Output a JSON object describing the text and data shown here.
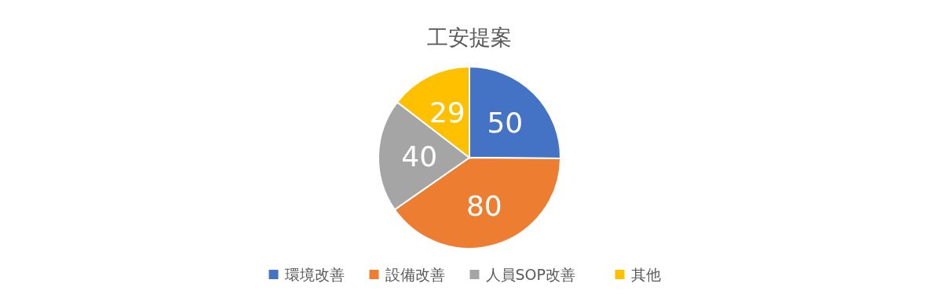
{
  "chart_data": {
    "type": "pie",
    "title": "工安提案",
    "categories": [
      "環境改善",
      "設備改善",
      "人員SOP改善",
      "其他"
    ],
    "values": [
      50,
      80,
      40,
      29
    ],
    "colors": [
      "#4472c4",
      "#ed7d31",
      "#a5a5a5",
      "#ffc000"
    ],
    "data_labels": true,
    "legend": "bottom"
  }
}
